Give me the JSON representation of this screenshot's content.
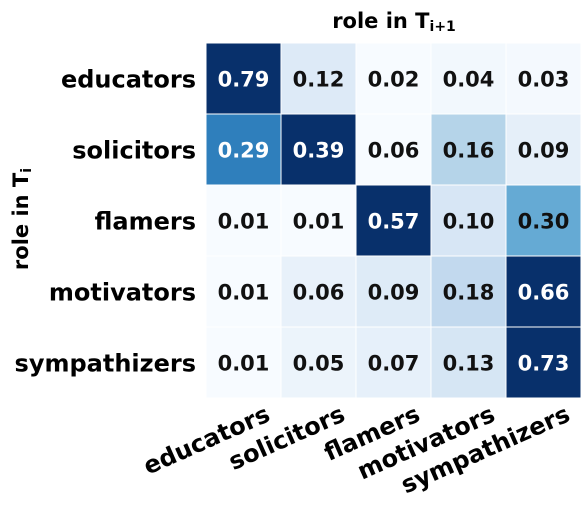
{
  "chart_data": {
    "type": "heatmap",
    "xlabel": "role in T",
    "xlabel_sub": "i+1",
    "ylabel": "role in T",
    "ylabel_sub": "i",
    "rows": [
      "educators",
      "solicitors",
      "flamers",
      "motivators",
      "sympathizers"
    ],
    "cols": [
      "educators",
      "solicitors",
      "flamers",
      "motivators",
      "sympathizers"
    ],
    "values": [
      [
        0.79,
        0.12,
        0.02,
        0.04,
        0.03
      ],
      [
        0.29,
        0.39,
        0.06,
        0.16,
        0.09
      ],
      [
        0.01,
        0.01,
        0.57,
        0.1,
        0.3
      ],
      [
        0.01,
        0.06,
        0.09,
        0.18,
        0.66
      ],
      [
        0.01,
        0.05,
        0.07,
        0.13,
        0.73
      ]
    ],
    "colormap": "Blues",
    "cell_text_format": "0.00"
  }
}
